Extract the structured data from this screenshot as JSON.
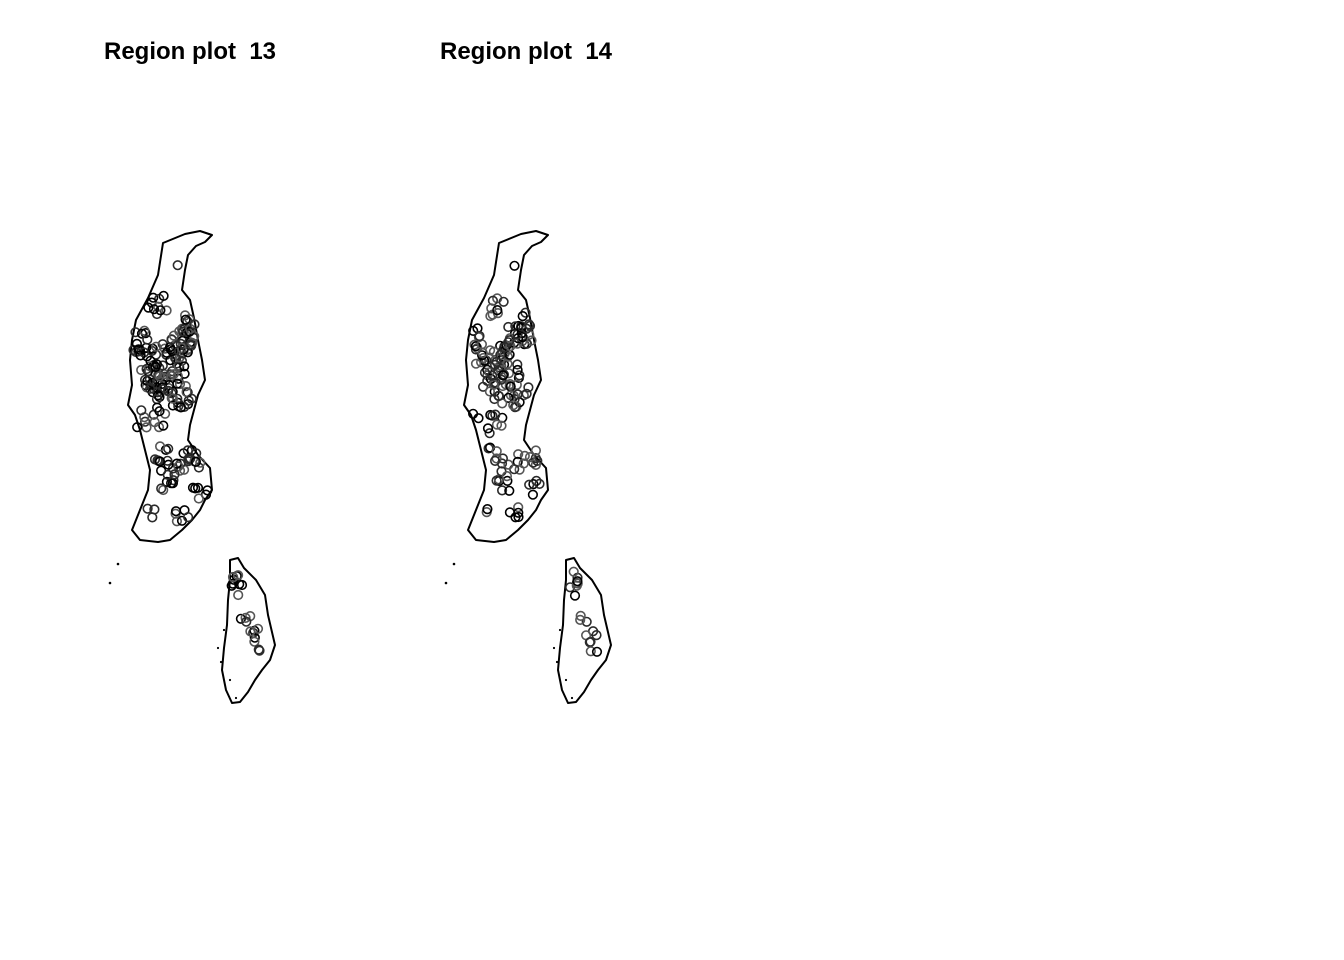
{
  "panels": [
    {
      "title": "Region plot  13",
      "style": "dense"
    },
    {
      "title": "Region plot  14",
      "style": "sparse"
    }
  ],
  "colors": {
    "outline": "#000000",
    "points": [
      "#000000",
      "#2b2b2b",
      "#555555"
    ]
  }
}
